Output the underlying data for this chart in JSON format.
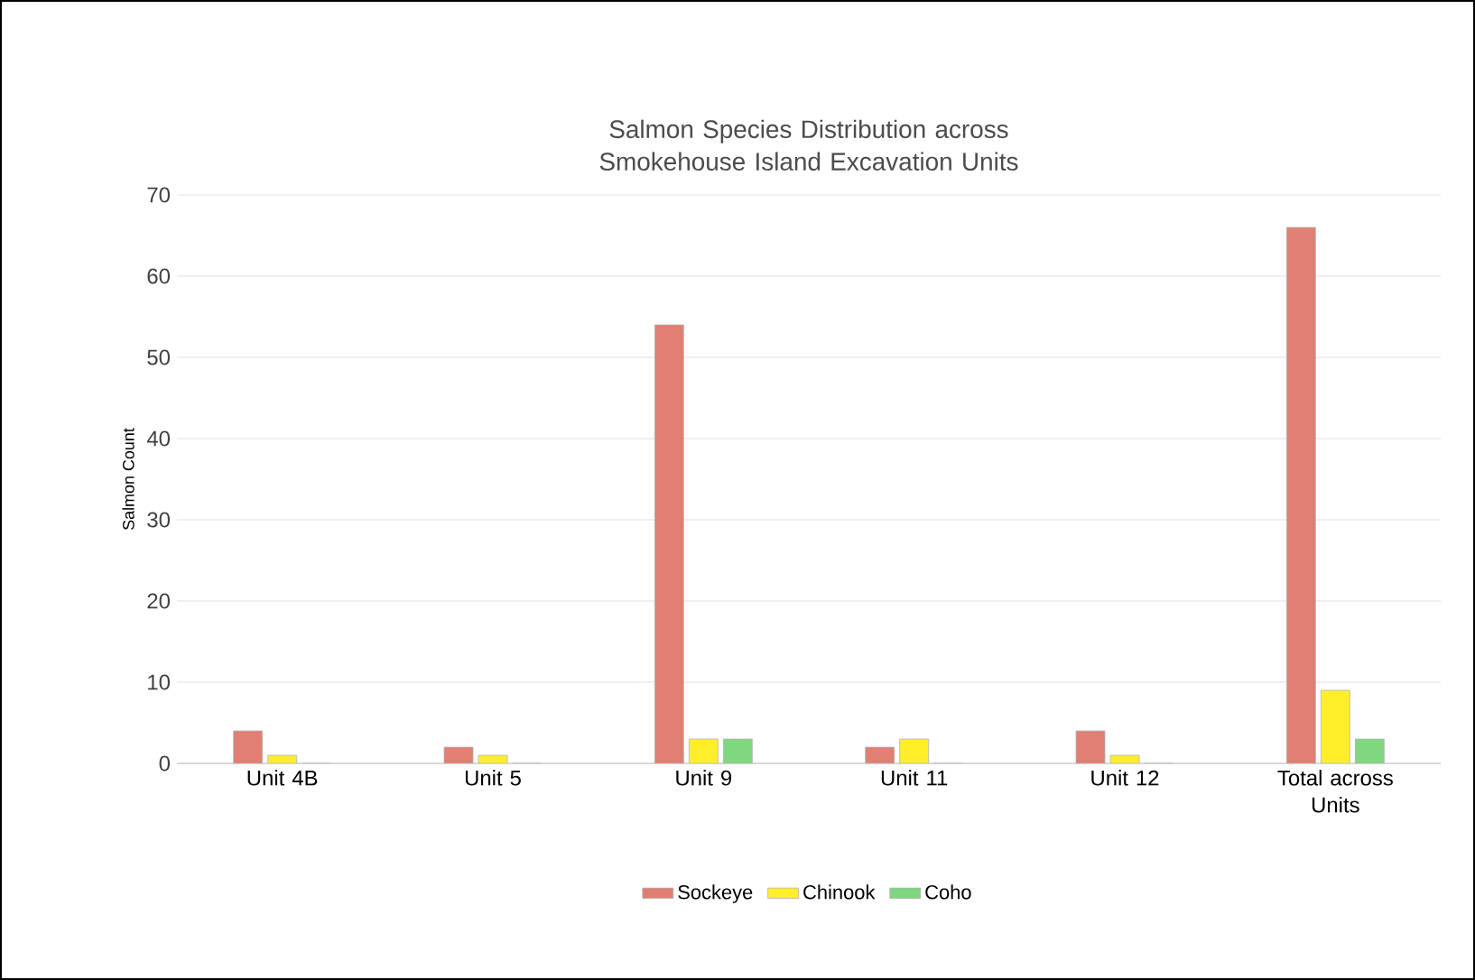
{
  "chart_data": {
    "type": "bar",
    "title": "Salmon Species Distribution across Smokehouse Island Excavation Units",
    "ylabel": "Salmon Count",
    "categories": [
      "Unit 4B",
      "Unit 5",
      "Unit 9",
      "Unit 11",
      "Unit 12",
      "Total across Units"
    ],
    "series": [
      {
        "name": "Sockeye",
        "color": "#e07f72",
        "values": [
          4,
          2,
          54,
          2,
          4,
          66
        ]
      },
      {
        "name": "Chinook",
        "color": "#ffef2a",
        "values": [
          1,
          1,
          3,
          3,
          1,
          9
        ]
      },
      {
        "name": "Coho",
        "color": "#7fd77f",
        "values": [
          0,
          0,
          3,
          0,
          0,
          3
        ]
      }
    ],
    "ylim": [
      0,
      70
    ],
    "yticks": [
      0,
      10,
      20,
      30,
      40,
      50,
      60,
      70
    ],
    "grid": "y",
    "legend": "bottom"
  }
}
